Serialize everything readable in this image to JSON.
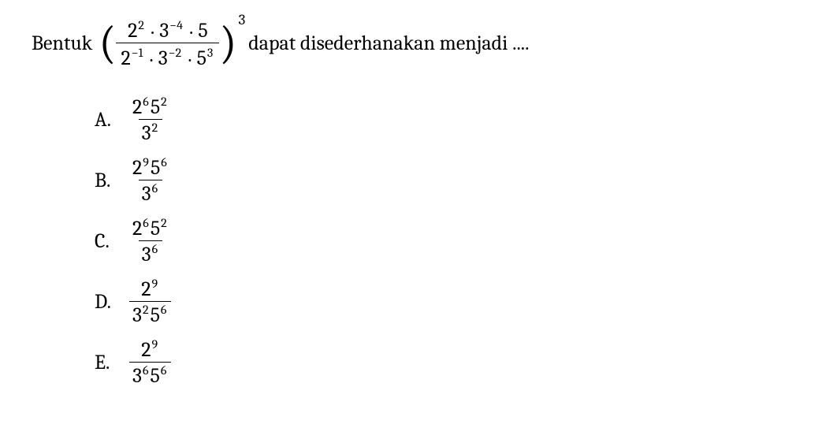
{
  "question": {
    "text_before": "Bentuk",
    "text_after": "dapat disederhanakan menjadi ....",
    "expression": {
      "numerator": [
        {
          "base": "2",
          "exp": "2"
        },
        {
          "dot": "."
        },
        {
          "base": "3",
          "exp": "−4"
        },
        {
          "dot": "."
        },
        {
          "base": "5",
          "exp": ""
        }
      ],
      "denominator": [
        {
          "base": "2",
          "exp": "−1"
        },
        {
          "dot": "."
        },
        {
          "base": "3",
          "exp": "−2"
        },
        {
          "dot": "."
        },
        {
          "base": "5",
          "exp": "3"
        }
      ],
      "outer_exponent": "3"
    }
  },
  "options": [
    {
      "letter": "A.",
      "numerator": [
        {
          "base": "2",
          "exp": "6"
        },
        {
          "base": "5",
          "exp": "2"
        }
      ],
      "denominator": [
        {
          "base": "3",
          "exp": "2"
        }
      ]
    },
    {
      "letter": "B.",
      "numerator": [
        {
          "base": "2",
          "exp": "9"
        },
        {
          "base": "5",
          "exp": "6"
        }
      ],
      "denominator": [
        {
          "base": "3",
          "exp": "6"
        }
      ]
    },
    {
      "letter": "C.",
      "numerator": [
        {
          "base": "2",
          "exp": "6"
        },
        {
          "base": "5",
          "exp": "2"
        }
      ],
      "denominator": [
        {
          "base": "3",
          "exp": "6"
        }
      ]
    },
    {
      "letter": "D.",
      "numerator": [
        {
          "base": "2",
          "exp": "9"
        }
      ],
      "denominator": [
        {
          "base": "3",
          "exp": "2"
        },
        {
          "base": "5",
          "exp": "6"
        }
      ]
    },
    {
      "letter": "E.",
      "numerator": [
        {
          "base": "2",
          "exp": "9"
        }
      ],
      "denominator": [
        {
          "base": "3",
          "exp": "6"
        },
        {
          "base": "5",
          "exp": "6"
        }
      ]
    }
  ],
  "style": {
    "font_family": "Cambria, Georgia, serif",
    "font_size_base": 26,
    "font_size_sup": 16,
    "font_size_paren": 58,
    "font_size_outer_exp": 19,
    "text_color": "#000000",
    "background_color": "#ffffff",
    "fraction_bar_color": "#000000",
    "fraction_bar_width": 1.5
  }
}
